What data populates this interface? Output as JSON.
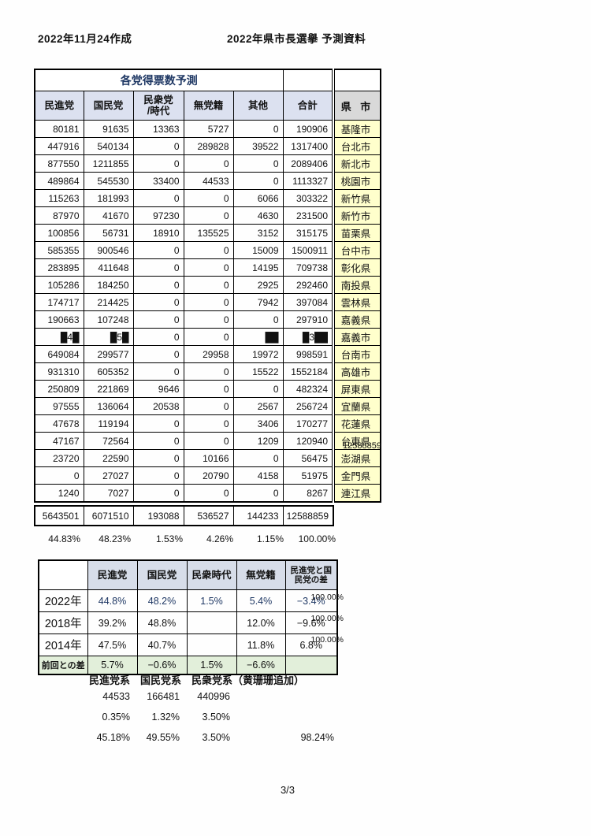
{
  "page": {
    "created_label": "2022年11月24作成",
    "title": "2022年県市長選擧 予測資料",
    "page_number": "3/3"
  },
  "colors": {
    "party_header_fill": "#dce1f0",
    "summary_header_fill": "#d7dde9",
    "region_header_fill": "#d9d9d9",
    "region_fill": "#ffffcc",
    "diff_row_fill": "#e2efda",
    "title_text": "#1f3864"
  },
  "forecast_table": {
    "title": "各党得票数予測",
    "columns": [
      "民進党",
      "国民党",
      "民衆党\n/時代",
      "無党籍",
      "其他",
      "合計"
    ],
    "region_header": "県 市",
    "rows": [
      {
        "values": [
          "80181",
          "91635",
          "13363",
          "5727",
          "0",
          "190906"
        ],
        "region": "基隆市"
      },
      {
        "values": [
          "447916",
          "540134",
          "0",
          "289828",
          "39522",
          "1317400"
        ],
        "region": "台北市"
      },
      {
        "values": [
          "877550",
          "1211855",
          "0",
          "0",
          "0",
          "2089406"
        ],
        "region": "新北市"
      },
      {
        "values": [
          "489864",
          "545530",
          "33400",
          "44533",
          "0",
          "1113327"
        ],
        "region": "桃園市"
      },
      {
        "values": [
          "115263",
          "181993",
          "0",
          "0",
          "6066",
          "303322"
        ],
        "region": "新竹県"
      },
      {
        "values": [
          "87970",
          "41670",
          "97230",
          "0",
          "4630",
          "231500"
        ],
        "region": "新竹市"
      },
      {
        "values": [
          "100856",
          "56731",
          "18910",
          "135525",
          "3152",
          "315175"
        ],
        "region": "苗栗県"
      },
      {
        "values": [
          "585355",
          "900546",
          "0",
          "0",
          "15009",
          "1500911"
        ],
        "region": "台中市"
      },
      {
        "values": [
          "283895",
          "411648",
          "0",
          "0",
          "14195",
          "709738"
        ],
        "region": "彰化県"
      },
      {
        "values": [
          "105286",
          "184250",
          "0",
          "0",
          "2925",
          "292460"
        ],
        "region": "南投県"
      },
      {
        "values": [
          "174717",
          "214425",
          "0",
          "0",
          "7942",
          "397084"
        ],
        "region": "雲林県"
      },
      {
        "values": [
          "190663",
          "107248",
          "0",
          "0",
          "0",
          "297910"
        ],
        "region": "嘉義県"
      },
      {
        "values": [
          "█4█",
          "█5█",
          "0",
          "0",
          "██",
          "█3██"
        ],
        "region": "嘉義市"
      },
      {
        "values": [
          "649084",
          "299577",
          "0",
          "29958",
          "19972",
          "998591"
        ],
        "region": "台南市"
      },
      {
        "values": [
          "931310",
          "605352",
          "0",
          "0",
          "15522",
          "1552184"
        ],
        "region": "高雄市"
      },
      {
        "values": [
          "250809",
          "221869",
          "9646",
          "0",
          "0",
          "482324"
        ],
        "region": "屏東県"
      },
      {
        "values": [
          "97555",
          "136064",
          "20538",
          "0",
          "2567",
          "256724"
        ],
        "region": "宜蘭県"
      },
      {
        "values": [
          "47678",
          "119194",
          "0",
          "0",
          "3406",
          "170277"
        ],
        "region": "花蓮県"
      },
      {
        "values": [
          "47167",
          "72564",
          "0",
          "0",
          "1209",
          "120940"
        ],
        "region": "台東県"
      },
      {
        "values": [
          "23720",
          "22590",
          "0",
          "10166",
          "0",
          "56475"
        ],
        "region": "澎湖県"
      },
      {
        "values": [
          "0",
          "27027",
          "0",
          "20790",
          "4158",
          "51975"
        ],
        "region": "金門県"
      },
      {
        "values": [
          "1240",
          "7027",
          "0",
          "0",
          "0",
          "8267"
        ],
        "region": "連江県"
      }
    ],
    "totals": [
      "5643501",
      "6071510",
      "193088",
      "536527",
      "144233",
      "12588859"
    ],
    "outside_total": "12588859",
    "percentages": [
      "44.83%",
      "48.23%",
      "1.53%",
      "4.26%",
      "1.15%",
      "100.00%"
    ]
  },
  "summary_table": {
    "columns": [
      "民進党",
      "国民党",
      "民衆時代",
      "無党籍",
      "民進党と国\n民党の差"
    ],
    "rows": [
      {
        "label": "2022年",
        "values": [
          "44.8%",
          "48.2%",
          "1.5%",
          "5.4%",
          "−3.4%"
        ],
        "note": "100.00%",
        "forecast": true,
        "diff": false
      },
      {
        "label": "2018年",
        "values": [
          "39.2%",
          "48.8%",
          "",
          "12.0%",
          "−9.6%"
        ],
        "note": "100.00%",
        "forecast": false,
        "diff": false
      },
      {
        "label": "2014年",
        "values": [
          "47.5%",
          "40.7%",
          "",
          "11.8%",
          "6.8%"
        ],
        "note": "100.00%",
        "forecast": false,
        "diff": false
      },
      {
        "label": "前回との差",
        "values": [
          "5.7%",
          "−0.6%",
          "1.5%",
          "−6.6%",
          ""
        ],
        "note": "",
        "forecast": false,
        "diff": true
      }
    ]
  },
  "bottom_section": {
    "headers": [
      "民進党系",
      "国民党系",
      "民衆党系（黄珊珊追加）"
    ],
    "rows": [
      [
        "44533",
        "166481",
        "440996"
      ],
      [
        "0.35%",
        "1.32%",
        "3.50%"
      ],
      [
        "45.18%",
        "49.55%",
        "3.50%"
      ]
    ],
    "total_percent": "98.24%"
  }
}
